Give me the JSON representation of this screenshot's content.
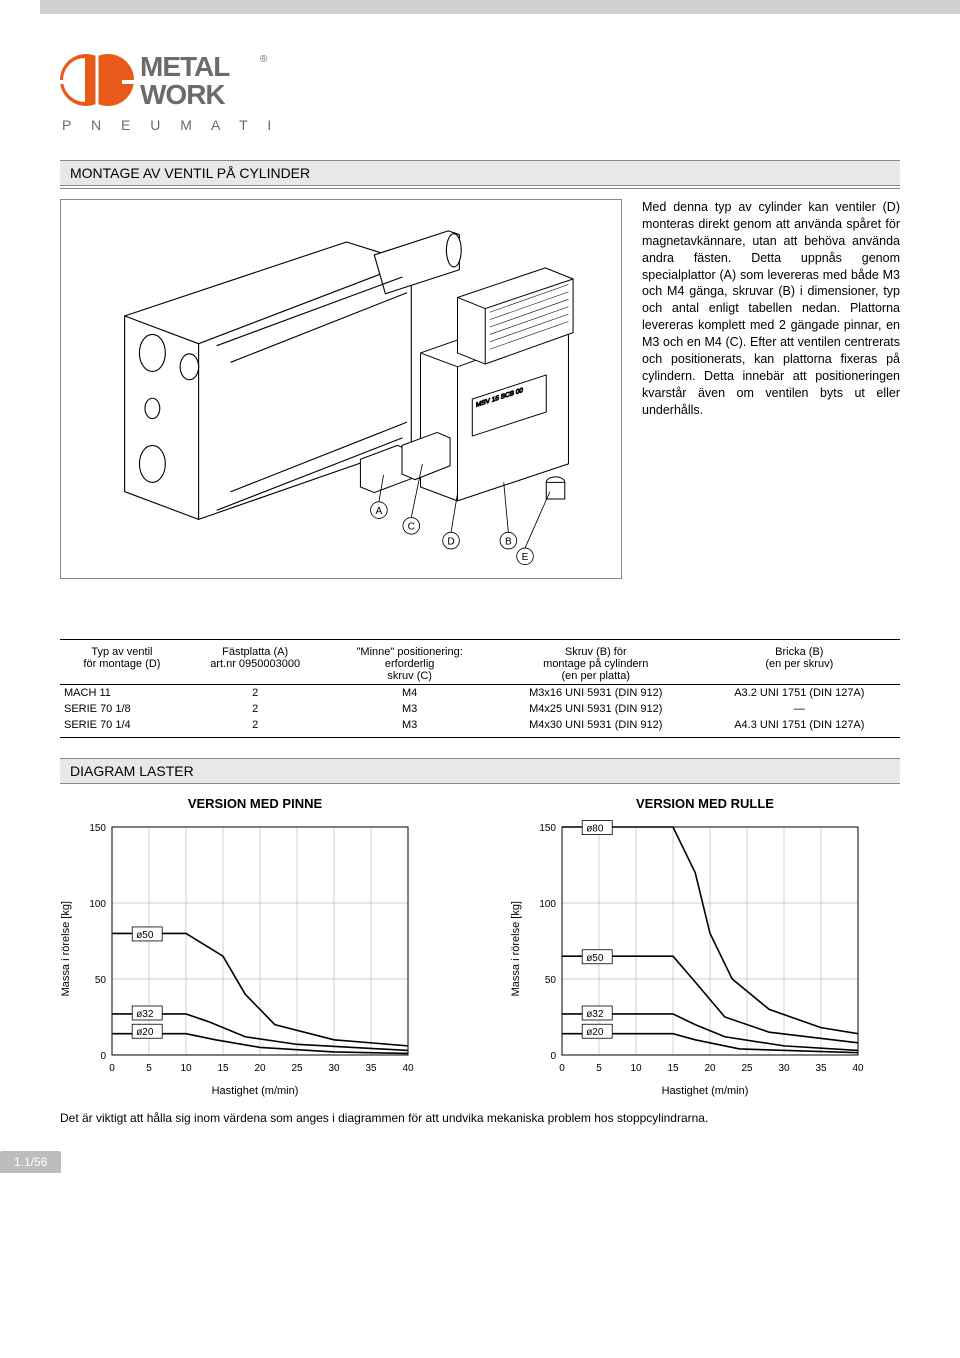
{
  "brand": {
    "name": "METAL WORK",
    "subtitle_letters": "P N E U M A T I C",
    "accent_color": "#e85a1a",
    "text_color": "#6b6b6b"
  },
  "section_title": "MONTAGE AV VENTIL PÅ CYLINDER",
  "description": "Med denna typ av cylinder kan ventiler (D) monteras direkt genom att använda spåret för magnetavkännare, utan att behöva använda andra fästen. Detta uppnås genom specialplattor (A) som levereras med både M3 och M4 gänga, skruvar (B) i dimensioner, typ och antal enligt tabellen nedan. Plattorna levereras komplett med 2 gängade pinnar, en M3 och en M4 (C). Efter att ventilen centrerats och positionerats, kan plattorna fixeras på cylindern. Detta innebär att positioneringen kvarstår även om ventilen byts ut eller underhålls.",
  "fig": {
    "callouts": [
      "A",
      "C",
      "D",
      "B",
      "E"
    ],
    "callout_positions": {
      "A": [
        315,
        330
      ],
      "C": [
        350,
        347
      ],
      "D": [
        393,
        363
      ],
      "B": [
        455,
        363
      ],
      "E": [
        473,
        380
      ]
    }
  },
  "table": {
    "headers": [
      [
        "Typ av ventil",
        "för montage (D)"
      ],
      [
        "Fästplatta (A)",
        "art.nr 0950003000"
      ],
      [
        "\"Minne\" positionering:",
        "erforderlig",
        "skruv (C)"
      ],
      [
        "Skruv (B) för",
        "montage på cylindern",
        "(en per platta)"
      ],
      [
        "Bricka (B)",
        "(en per skruv)"
      ]
    ],
    "rows": [
      [
        "MACH 11",
        "2",
        "M4",
        "M3x16 UNI 5931 (DIN 912)",
        "A3.2 UNI 1751 (DIN 127A)"
      ],
      [
        "SERIE 70 1/8",
        "2",
        "M3",
        "M4x25 UNI 5931 (DIN 912)",
        "—"
      ],
      [
        "SERIE 70 1/4",
        "2",
        "M3",
        "M4x30 UNI 5931 (DIN 912)",
        "A4.3 UNI 1751 (DIN 127A)"
      ]
    ]
  },
  "charts_section_title": "DIAGRAM LASTER",
  "charts": {
    "pinne": {
      "title": "VERSION MED PINNE",
      "type": "line",
      "xlabel": "Hastighet (m/min)",
      "ylabel": "Massa i rörelse [kg]",
      "xlim": [
        0,
        40
      ],
      "ylim": [
        0,
        150
      ],
      "xtick_step": 5,
      "ytick_step": 50,
      "grid_color": "#bfbfbf",
      "line_color": "#000000",
      "background_color": "#ffffff",
      "series": [
        {
          "label": "ø50",
          "label_xy": [
            3,
            77
          ],
          "points": [
            [
              0,
              80
            ],
            [
              10,
              80
            ],
            [
              15,
              65
            ],
            [
              18,
              40
            ],
            [
              22,
              20
            ],
            [
              30,
              10
            ],
            [
              40,
              6
            ]
          ]
        },
        {
          "label": "ø32",
          "label_xy": [
            3,
            25
          ],
          "points": [
            [
              0,
              27
            ],
            [
              10,
              27
            ],
            [
              13,
              22
            ],
            [
              18,
              12
            ],
            [
              25,
              7
            ],
            [
              40,
              3
            ]
          ]
        },
        {
          "label": "ø20",
          "label_xy": [
            3,
            13
          ],
          "points": [
            [
              0,
              14
            ],
            [
              10,
              14
            ],
            [
              14,
              10
            ],
            [
              20,
              5
            ],
            [
              30,
              2
            ],
            [
              40,
              1
            ]
          ]
        }
      ]
    },
    "rulle": {
      "title": "VERSION MED RULLE",
      "type": "line",
      "xlabel": "Hastighet (m/min)",
      "ylabel": "Massa i rörelse [kg]",
      "xlim": [
        0,
        40
      ],
      "ylim": [
        0,
        150
      ],
      "xtick_step": 5,
      "ytick_step": 50,
      "grid_color": "#bfbfbf",
      "line_color": "#000000",
      "background_color": "#ffffff",
      "series": [
        {
          "label": "ø80",
          "label_xy": [
            3,
            147
          ],
          "points": [
            [
              0,
              150
            ],
            [
              15,
              150
            ],
            [
              18,
              120
            ],
            [
              20,
              80
            ],
            [
              23,
              50
            ],
            [
              28,
              30
            ],
            [
              35,
              18
            ],
            [
              40,
              14
            ]
          ]
        },
        {
          "label": "ø50",
          "label_xy": [
            3,
            62
          ],
          "points": [
            [
              0,
              65
            ],
            [
              15,
              65
            ],
            [
              18,
              48
            ],
            [
              22,
              25
            ],
            [
              28,
              15
            ],
            [
              40,
              8
            ]
          ]
        },
        {
          "label": "ø32",
          "label_xy": [
            3,
            25
          ],
          "points": [
            [
              0,
              27
            ],
            [
              15,
              27
            ],
            [
              18,
              20
            ],
            [
              22,
              12
            ],
            [
              30,
              6
            ],
            [
              40,
              3
            ]
          ]
        },
        {
          "label": "ø20",
          "label_xy": [
            3,
            13
          ],
          "points": [
            [
              0,
              14
            ],
            [
              15,
              14
            ],
            [
              18,
              10
            ],
            [
              24,
              4
            ],
            [
              40,
              1.5
            ]
          ]
        }
      ]
    }
  },
  "footnote": "Det är viktigt att hålla sig inom värdena som anges i diagrammen för att undvika mekaniska problem hos stoppcylindrarna.",
  "page_number": "1.1/56"
}
